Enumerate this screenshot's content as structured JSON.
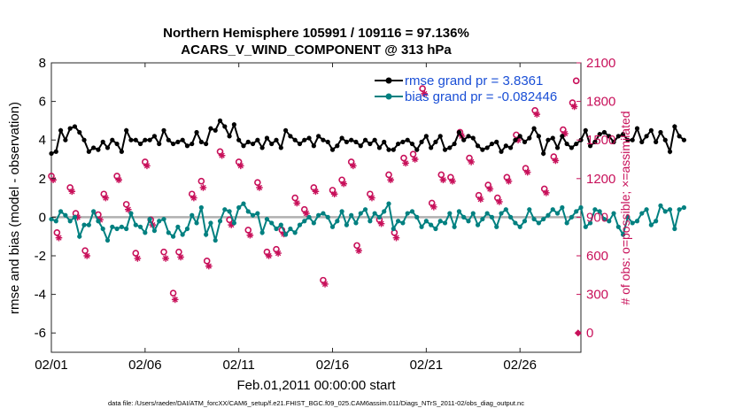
{
  "chart_data": {
    "type": "line",
    "title": "Northern Hemisphere 105991 / 109116 = 97.136%",
    "subtitle": "ACARS_V_WIND_COMPONENT @ 313 hPa",
    "xlabel": "Feb.01,2011 00:00:00 start",
    "ylabel": "rmse and bias (model - observation)",
    "y2label": "# of obs: o=possible; ×=assimilated",
    "footer": "data file: /Users/raeder/DAI/ATM_forcXX/CAM6_setup/f.e21.FHIST_BGC.f09_025.CAM6assim.011/Diags_NTrS_2011-02/obs_diag_output.nc",
    "xlim": [
      0,
      28.25
    ],
    "ylim": [
      -7,
      8
    ],
    "y2lim": [
      -150,
      2100
    ],
    "x_ticks": [
      0,
      5,
      10,
      15,
      20,
      25
    ],
    "x_ticklabels": [
      "02/01",
      "02/06",
      "02/11",
      "02/16",
      "02/21",
      "02/26"
    ],
    "y_ticks": [
      -6,
      -4,
      -2,
      0,
      2,
      4,
      6,
      8
    ],
    "y2_ticks": [
      0,
      300,
      600,
      900,
      1200,
      1500,
      1800,
      2100
    ],
    "zero_line": 0,
    "series": [
      {
        "name": "rmse",
        "legend": "rmse grand pr = 3.8361",
        "color": "#000000",
        "x_start": 0,
        "x_step": 0.25,
        "values": [
          3.3,
          3.4,
          4.5,
          4.0,
          4.6,
          4.7,
          4.4,
          4.0,
          3.4,
          3.6,
          3.5,
          3.9,
          3.6,
          4.0,
          3.8,
          3.4,
          4.5,
          4.0,
          4.0,
          3.8,
          4.0,
          4.0,
          4.2,
          3.8,
          4.5,
          4.0,
          3.8,
          3.9,
          4.0,
          3.7,
          3.8,
          4.4,
          3.9,
          3.8,
          4.6,
          4.5,
          5.0,
          4.7,
          4.2,
          4.8,
          4.0,
          3.7,
          3.9,
          3.8,
          4.0,
          3.6,
          4.1,
          3.8,
          4.0,
          3.6,
          4.5,
          4.2,
          4.0,
          3.8,
          4.0,
          4.1,
          3.7,
          4.2,
          4.0,
          3.9,
          3.5,
          3.7,
          4.1,
          3.9,
          4.0,
          3.9,
          3.7,
          4.0,
          3.8,
          4.0,
          3.6,
          3.9,
          3.5,
          3.5,
          3.8,
          3.9,
          4.0,
          3.8,
          3.5,
          3.9,
          4.2,
          3.6,
          3.9,
          4.2,
          3.5,
          3.6,
          3.8,
          4.4,
          4.0,
          4.2,
          4.1,
          3.7,
          3.5,
          3.6,
          3.8,
          3.9,
          3.4,
          3.7,
          3.6,
          4.0,
          4.2,
          3.9,
          4.1,
          4.6,
          4.2,
          3.3,
          4.0,
          4.1,
          3.6,
          4.2,
          3.8,
          3.6,
          3.8,
          4.0,
          4.5,
          3.7,
          3.9,
          4.3,
          4.4,
          4.2,
          3.9,
          4.2,
          4.3,
          4.0,
          4.0,
          4.6,
          3.9,
          4.2,
          4.5,
          3.9,
          4.4,
          4.0,
          3.4,
          4.7,
          4.2,
          4.0
        ]
      },
      {
        "name": "bias",
        "legend": "bias grand pr = -0.082446",
        "color": "#008080",
        "x_start": 0,
        "x_step": 0.25,
        "values": [
          -0.1,
          -0.2,
          0.3,
          0.1,
          -0.2,
          0.0,
          -1.0,
          -0.4,
          -0.4,
          0.3,
          -0.2,
          -0.6,
          -1.2,
          -0.5,
          -0.6,
          -0.5,
          -0.6,
          0.2,
          -0.4,
          -0.5,
          -0.8,
          -0.1,
          -0.7,
          -0.2,
          -0.1,
          -0.8,
          -1.0,
          -0.5,
          -0.9,
          -0.6,
          0.1,
          -0.3,
          0.5,
          -0.9,
          -0.3,
          -1.2,
          -0.2,
          0.4,
          0.3,
          -0.3,
          0.5,
          0.7,
          0.3,
          0.1,
          0.2,
          -0.8,
          -0.1,
          -0.3,
          -0.6,
          -0.4,
          -0.9,
          -0.6,
          -0.8,
          -0.4,
          -0.2,
          0.0,
          -0.3,
          0.1,
          0.2,
          0.0,
          -0.5,
          -0.2,
          0.3,
          -0.4,
          0.1,
          -0.3,
          0.2,
          0.4,
          -0.2,
          0.2,
          0.0,
          0.3,
          0.7,
          -0.6,
          -0.2,
          -0.3,
          0.2,
          0.3,
          0.0,
          -0.5,
          -0.2,
          -0.4,
          -0.6,
          -0.2,
          -0.3,
          0.2,
          -0.5,
          0.3,
          0.0,
          -0.2,
          0.2,
          -0.4,
          -0.1,
          0.2,
          0.0,
          -0.5,
          0.2,
          0.4,
          0.0,
          -0.3,
          -0.5,
          -0.2,
          0.4,
          -0.1,
          -0.3,
          -0.1,
          0.1,
          0.4,
          0.2,
          0.5,
          -0.3,
          0.0,
          0.3,
          0.5,
          -0.5,
          -0.3,
          0.4,
          0.3,
          -0.1,
          -0.2,
          0.2,
          -0.5,
          -0.9,
          0.0,
          -0.3,
          -0.2,
          0.2,
          0.4,
          -0.4,
          -0.2,
          0.6,
          0.3,
          0.4,
          -0.6,
          0.4,
          0.5
        ]
      },
      {
        "name": "obs possible",
        "marker": "circle",
        "color": "#c8105a",
        "axis": "right",
        "x": [
          0.0,
          0.3,
          1.0,
          1.3,
          1.8,
          2.5,
          2.8,
          3.5,
          4.0,
          4.5,
          5.0,
          5.3,
          6.0,
          6.5,
          6.8,
          7.5,
          8.0,
          8.3,
          9.0,
          9.5,
          10.0,
          10.5,
          11.0,
          11.5,
          12.0,
          12.3,
          13.0,
          13.5,
          14.0,
          14.5,
          15.0,
          15.5,
          16.0,
          16.3,
          17.0,
          17.5,
          18.0,
          18.3,
          18.8,
          19.3,
          19.8,
          20.3,
          20.8,
          21.3,
          21.8,
          22.3,
          22.8,
          23.3,
          23.8,
          24.3,
          24.8,
          25.3,
          25.8,
          26.3,
          26.8,
          27.3,
          27.8,
          28.0
        ],
        "values": [
          1220,
          780,
          1130,
          930,
          640,
          920,
          1080,
          1220,
          1000,
          620,
          1330,
          880,
          630,
          310,
          630,
          1080,
          1180,
          560,
          1410,
          880,
          1330,
          800,
          1170,
          630,
          650,
          800,
          1050,
          960,
          1130,
          410,
          1110,
          1190,
          1330,
          680,
          1080,
          880,
          1230,
          780,
          1360,
          1390,
          1900,
          1010,
          1230,
          1210,
          1560,
          1360,
          1070,
          1150,
          1050,
          1210,
          1540,
          1280,
          1730,
          1120,
          1370,
          1580,
          1790,
          1960
        ]
      },
      {
        "name": "obs assimilated",
        "marker": "asterisk",
        "color": "#c8105a",
        "axis": "right",
        "x": [
          0.1,
          0.4,
          1.1,
          1.4,
          1.9,
          2.6,
          2.9,
          3.6,
          4.1,
          4.6,
          5.1,
          5.4,
          6.1,
          6.6,
          6.9,
          7.6,
          8.1,
          8.4,
          9.1,
          9.6,
          10.1,
          10.6,
          11.1,
          11.6,
          12.1,
          12.4,
          13.1,
          13.6,
          14.1,
          14.6,
          15.1,
          15.6,
          16.1,
          16.4,
          17.1,
          17.6,
          18.1,
          18.4,
          18.9,
          19.4,
          19.9,
          20.4,
          20.9,
          21.4,
          21.9,
          22.4,
          22.9,
          23.4,
          23.9,
          24.4,
          24.9,
          25.4,
          25.9,
          26.4,
          26.9,
          27.4,
          27.9
        ],
        "values": [
          1190,
          740,
          1100,
          900,
          600,
          880,
          1050,
          1190,
          960,
          580,
          1300,
          840,
          580,
          260,
          590,
          1050,
          1130,
          520,
          1380,
          840,
          1300,
          760,
          1130,
          600,
          620,
          770,
          1010,
          930,
          1100,
          380,
          1080,
          1160,
          1300,
          640,
          1050,
          850,
          1190,
          740,
          1320,
          1350,
          1860,
          980,
          1190,
          1180,
          1530,
          1330,
          1040,
          1120,
          1020,
          1180,
          1500,
          1250,
          1700,
          1090,
          1340,
          1550,
          1760
        ]
      }
    ],
    "right_axis_marker": {
      "x": 28.1,
      "value": 0
    }
  }
}
